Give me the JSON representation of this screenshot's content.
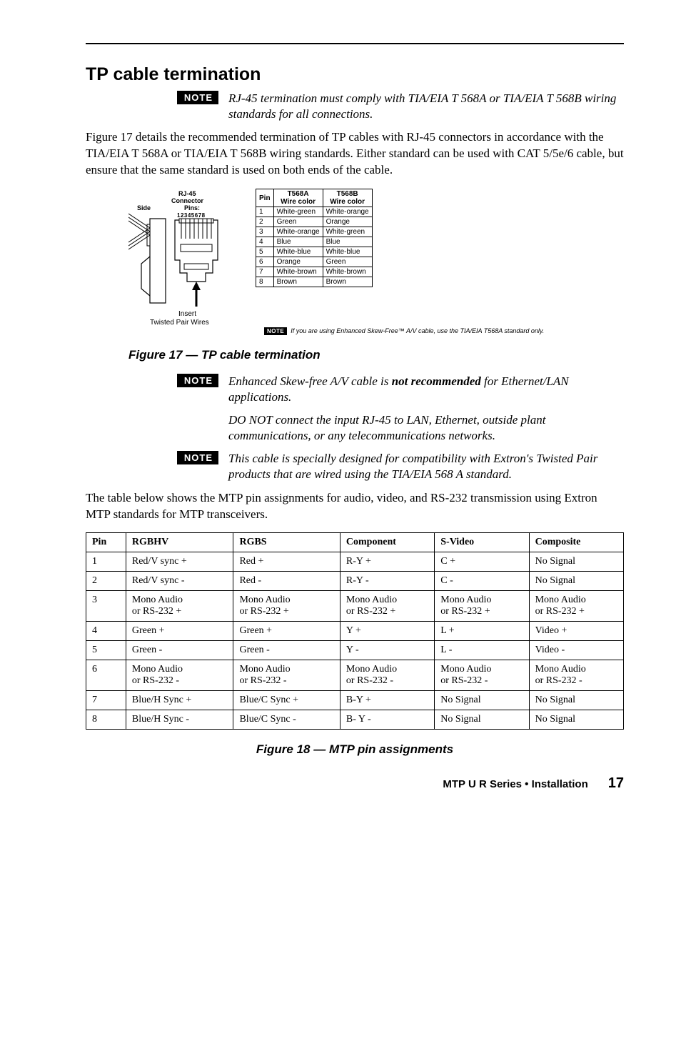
{
  "section": {
    "title": "TP cable termination"
  },
  "notes": {
    "badge": "NOTE",
    "n1": "RJ-45 termination must comply with TIA/EIA T 568A or TIA/EIA T 568B wiring standards for all connections.",
    "n2_a": "Enhanced Skew-free A/V cable is ",
    "n2_bold": "not recommended",
    "n2_b": " for Ethernet/LAN applications.",
    "n2_c": "DO NOT connect the input RJ-45 to LAN, Ethernet, outside plant communications, or any telecommunications networks.",
    "n3": "This cable is specially designed for compatibility with Extron's Twisted Pair products that are wired using the TIA/EIA 568 A standard."
  },
  "para1": "Figure 17 details the recommended termination of TP cables with RJ-45 connectors in accordance with the TIA/EIA T 568A or TIA/EIA T 568B wiring standards.  Either standard can be used with CAT 5/5e/6 cable, but ensure that the same standard is used on both ends of the cable.",
  "rj45_diagram": {
    "labels": {
      "connector": "RJ-45\nConnector",
      "side": "Side",
      "pins": "Pins:",
      "pinnums": "12345678",
      "insert": "Insert",
      "tw": "Twisted Pair Wires"
    }
  },
  "wire_table": {
    "headers": [
      "Pin",
      "T568A\nWire color",
      "T568B\nWire color"
    ],
    "rows": [
      [
        "1",
        "White-green",
        "White-orange"
      ],
      [
        "2",
        "Green",
        "Orange"
      ],
      [
        "3",
        "White-orange",
        "White-green"
      ],
      [
        "4",
        "Blue",
        "Blue"
      ],
      [
        "5",
        "White-blue",
        "White-blue"
      ],
      [
        "6",
        "Orange",
        "Green"
      ],
      [
        "7",
        "White-brown",
        "White-brown"
      ],
      [
        "8",
        "Brown",
        "Brown"
      ]
    ],
    "footnote": "If you are using Enhanced Skew-Free™ A/V cable, use the TIA/EIA T568A standard only."
  },
  "fig17": "Figure 17 — TP cable termination",
  "para2": "The table below shows the MTP pin assignments for audio, video, and RS-232 transmission using Extron MTP standards for MTP transceivers.",
  "pin_table": {
    "headers": [
      "Pin",
      "RGBHV",
      "RGBS",
      "Component",
      "S-Video",
      "Composite"
    ],
    "rows": [
      [
        "1",
        "Red/V sync +",
        "Red +",
        "R-Y +",
        "C +",
        "No Signal"
      ],
      [
        "2",
        "Red/V sync -",
        "Red -",
        "R-Y -",
        "C -",
        "No Signal"
      ],
      [
        "3",
        "Mono Audio\nor RS-232 +",
        "Mono Audio\nor RS-232 +",
        "Mono Audio\nor RS-232 +",
        "Mono Audio\nor RS-232 +",
        "Mono Audio\nor RS-232 +"
      ],
      [
        "4",
        "Green +",
        "Green +",
        "Y +",
        "L +",
        "Video +"
      ],
      [
        "5",
        "Green -",
        "Green -",
        "Y -",
        "L -",
        "Video -"
      ],
      [
        "6",
        "Mono Audio\nor RS-232 -",
        "Mono Audio\nor RS-232 -",
        "Mono Audio\nor RS-232 -",
        "Mono Audio\nor RS-232 -",
        "Mono Audio\nor RS-232 -"
      ],
      [
        "7",
        "Blue/H Sync +",
        "Blue/C Sync +",
        "B-Y +",
        "No Signal",
        "No Signal"
      ],
      [
        "8",
        "Blue/H Sync -",
        "Blue/C Sync -",
        "B- Y -",
        "No Signal",
        "No Signal"
      ]
    ]
  },
  "fig18": "Figure 18 — MTP pin assignments",
  "footer": {
    "title": "MTP U R Series • Installation",
    "page": "17"
  }
}
